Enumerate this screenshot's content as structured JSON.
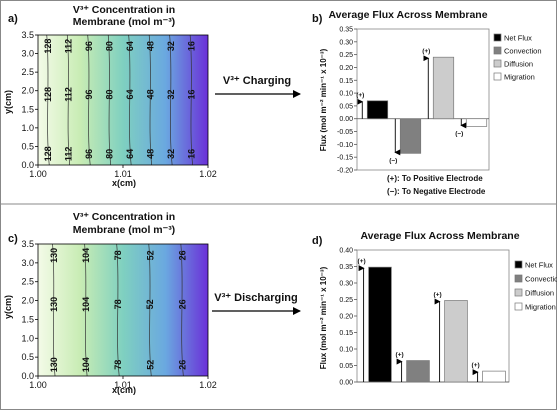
{
  "panels": {
    "a": {
      "letter": "a)",
      "title_line1": "V³⁺ Concentration in",
      "title_line2": "Membrane (mol m⁻³)",
      "xlabel": "x(cm)",
      "ylabel": "y(cm)",
      "xticks": [
        "1.00",
        "1.01",
        "1.02"
      ],
      "yticks": [
        "0.0",
        "0.5",
        "1.0",
        "1.5",
        "2.0",
        "2.5",
        "3.0",
        "3.5"
      ],
      "contour_labels": [
        "128",
        "112",
        "96",
        "80",
        "64",
        "48",
        "32",
        "16"
      ],
      "label_rows": [
        3.2,
        1.9,
        0.3
      ]
    },
    "c": {
      "letter": "c)",
      "title_line1": "V³⁺ Concentration in",
      "title_line2": "Membrane (mol m⁻³)",
      "xlabel": "x(cm)",
      "ylabel": "y(cm)",
      "xticks": [
        "1.00",
        "1.01",
        "1.02"
      ],
      "yticks": [
        "0.0",
        "0.5",
        "1.0",
        "1.5",
        "2.0",
        "2.5",
        "3.0",
        "3.5"
      ],
      "contour_labels": [
        "130",
        "104",
        "78",
        "52",
        "26"
      ],
      "label_rows": [
        3.2,
        1.9,
        0.3
      ]
    }
  },
  "arrows": {
    "charging": "V³⁺ Charging",
    "discharging": "V³⁺ Discharging"
  },
  "bar_panels": {
    "b": {
      "letter": "b)",
      "sign_label_pos": "(+)",
      "sign_label_neg": "(−)",
      "note_pos": "(+):  To Positive Electrode",
      "note_neg": "(−):  To Negative Electrode"
    },
    "d": {
      "letter": "d)",
      "sign_label_pos": "(+)"
    }
  },
  "colors": {
    "net_flux": "#000000",
    "convection": "#808080",
    "diffusion": "#cccccc",
    "migration": "#ffffff",
    "contour_start": "#f4fbe8",
    "contour_mid": "#7fd0c0",
    "contour_end": "#6a30d8"
  },
  "chart_data": [
    {
      "type": "bar",
      "title": "Average Flux Across Membrane",
      "ylabel": "Flux (mol m⁻² min⁻¹ x 10⁻³)",
      "ylim": [
        -0.2,
        0.35
      ],
      "yticks": [
        "0.35",
        "0.30",
        "0.25",
        "0.20",
        "0.15",
        "0.10",
        "0.05",
        "0.00",
        "-0.05",
        "-0.10",
        "-0.15",
        "-0.20"
      ],
      "categories": [
        "Net Flux",
        "Convection",
        "Diffusion",
        "Migration"
      ],
      "values": [
        0.07,
        -0.135,
        0.24,
        -0.03
      ],
      "legend": "right",
      "grid": false,
      "signs": [
        "(+)",
        "(−)",
        "(+)",
        "(−)"
      ]
    },
    {
      "type": "bar",
      "title": "Average Flux Across Membrane",
      "ylabel": "Flux (mol m⁻² min⁻¹ x 10⁻³)",
      "ylim": [
        0,
        0.4
      ],
      "yticks": [
        "0.40",
        "0.35",
        "0.30",
        "0.25",
        "0.20",
        "0.15",
        "0.10",
        "0.05",
        "0.00"
      ],
      "categories": [
        "Net Flux",
        "Convection",
        "Diffusion",
        "Migration"
      ],
      "values": [
        0.348,
        0.065,
        0.247,
        0.033
      ],
      "legend": "right",
      "grid": false,
      "signs": [
        "(+)",
        "(+)",
        "(+)",
        "(+)"
      ]
    },
    {
      "type": "heatmap",
      "title": "V³⁺ Concentration in Membrane (mol m⁻³)",
      "xlabel": "x(cm)",
      "ylabel": "y(cm)",
      "xlim": [
        1.0,
        1.02
      ],
      "ylim": [
        0.0,
        3.5
      ],
      "contour_levels": [
        128,
        112,
        96,
        80,
        64,
        48,
        32,
        16
      ]
    },
    {
      "type": "heatmap",
      "title": "V³⁺ Concentration in Membrane (mol m⁻³)",
      "xlabel": "x(cm)",
      "ylabel": "y(cm)",
      "xlim": [
        1.0,
        1.02
      ],
      "ylim": [
        0.0,
        3.5
      ],
      "contour_levels": [
        130,
        104,
        78,
        52,
        26
      ]
    }
  ]
}
